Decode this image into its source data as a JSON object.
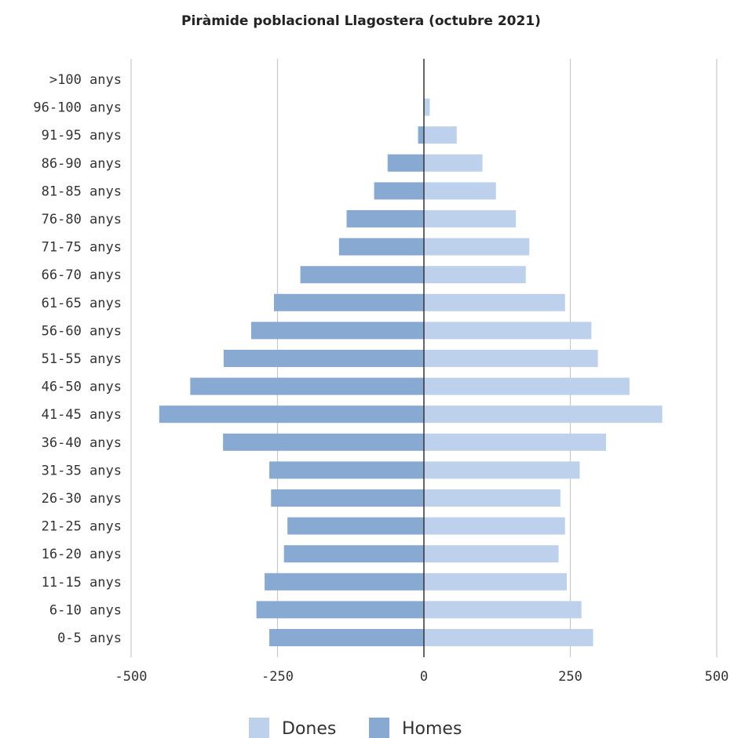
{
  "chart_data": {
    "type": "bar",
    "orientation": "horizontal",
    "title": "Piràmide poblacional Llagostera (octubre 2021)",
    "xlabel": "",
    "ylabel": "",
    "xlim": [
      -500,
      500
    ],
    "xticks": [
      -500,
      -250,
      0,
      250,
      500
    ],
    "xtick_labels": [
      "-500",
      "-250",
      "0",
      "250",
      "500"
    ],
    "grid": true,
    "legend_position": "bottom",
    "categories": [
      "0-5 anys",
      "6-10 anys",
      "11-15 anys",
      "16-20 anys",
      "21-25 anys",
      "26-30 anys",
      "31-35 anys",
      "36-40 anys",
      "41-45 anys",
      "46-50 anys",
      "51-55 anys",
      "56-60 anys",
      "61-65 anys",
      "66-70 anys",
      "71-75 anys",
      "76-80 anys",
      "81-85 anys",
      "86-90 anys",
      "91-95 anys",
      "96-100 anys",
      ">100 anys"
    ],
    "series": [
      {
        "name": "Dones",
        "color": "#bdd1ec",
        "values": [
          289,
          269,
          244,
          230,
          241,
          233,
          266,
          311,
          407,
          351,
          297,
          286,
          241,
          174,
          180,
          157,
          123,
          100,
          56,
          10,
          0
        ]
      },
      {
        "name": "Homes",
        "color": "#88a9d1",
        "values": [
          -264,
          -286,
          -272,
          -239,
          -233,
          -261,
          -264,
          -343,
          -452,
          -399,
          -342,
          -295,
          -256,
          -211,
          -145,
          -132,
          -85,
          -62,
          -10,
          0,
          0
        ]
      }
    ]
  }
}
